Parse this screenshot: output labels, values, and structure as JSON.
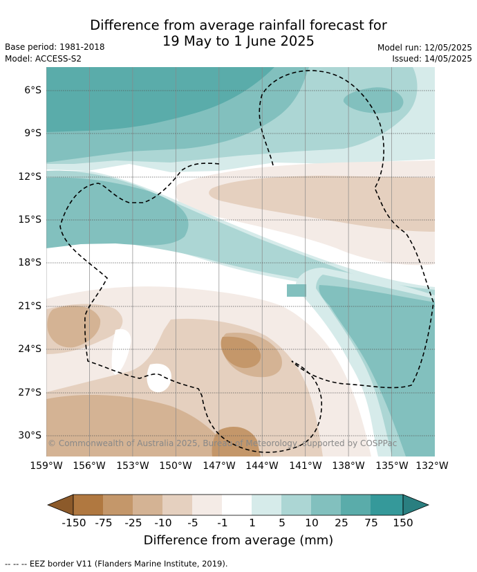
{
  "title": {
    "line1": "Difference from average rainfall forecast for",
    "line2": "19 May to 1 June 2025"
  },
  "meta": {
    "base_period": "Base period: 1981-2018",
    "model": "Model: ACCESS-S2",
    "model_run": "Model run: 12/05/2025",
    "issued": "Issued: 14/05/2025"
  },
  "map": {
    "lat_labels": [
      "6°S",
      "9°S",
      "12°S",
      "15°S",
      "18°S",
      "21°S",
      "24°S",
      "27°S",
      "30°S"
    ],
    "lat_values": [
      -6,
      -9,
      -12,
      -15,
      -18,
      -21,
      -24,
      -27,
      -30
    ],
    "lon_labels": [
      "159°W",
      "156°W",
      "153°W",
      "150°W",
      "147°W",
      "144°W",
      "141°W",
      "138°W",
      "135°W",
      "132°W"
    ],
    "lon_values": [
      -159,
      -156,
      -153,
      -150,
      -147,
      -144,
      -141,
      -138,
      -135,
      -132
    ],
    "lon_range": [
      -159,
      -132
    ],
    "lat_range": [
      -4.7,
      -31.7
    ],
    "gridlines": true,
    "copyright": "© Commonwealth of Australia 2025, Bureau of Meteorology, supported by COSPPac"
  },
  "colorbar": {
    "labels": [
      "-150",
      "-75",
      "-25",
      "-10",
      "-5",
      "-1",
      "1",
      "5",
      "10",
      "25",
      "75",
      "150"
    ],
    "colors": [
      "#8c5a2a",
      "#b07840",
      "#c4976a",
      "#d4b394",
      "#e5d0bf",
      "#f4ebe6",
      "#ffffff",
      "#d6ebea",
      "#acd6d4",
      "#82c0be",
      "#5aacaa",
      "#35999a",
      "#2a7f80"
    ],
    "extend": "both",
    "title": "Difference from average (mm)"
  },
  "footnote": "--  --  -- EEZ border V11 (Flanders Marine Institute, 2019)."
}
